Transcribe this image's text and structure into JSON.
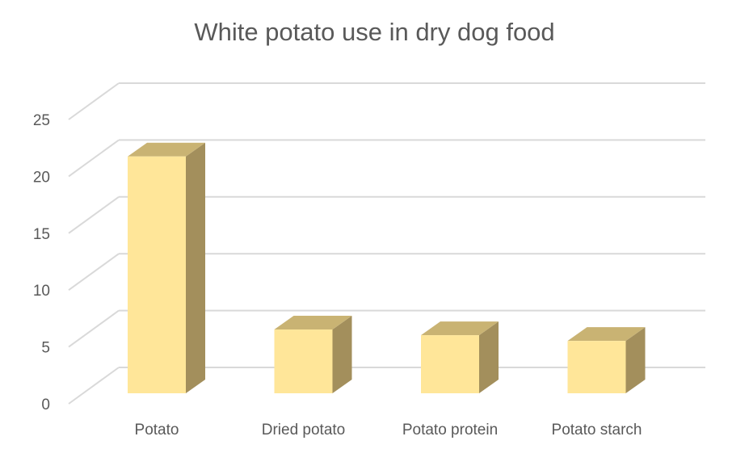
{
  "chart_data": {
    "type": "bar",
    "title": "White potato use in dry dog food",
    "categories": [
      "Potato",
      "Dried potato",
      "Potato protein",
      "Potato starch"
    ],
    "values": [
      20.8,
      5.6,
      5.1,
      4.6
    ],
    "ylim": [
      0,
      25
    ],
    "yticks": [
      0,
      5,
      10,
      15,
      20,
      25
    ],
    "ytick_labels": [
      "0",
      "5",
      "10",
      "15",
      "20",
      "25"
    ],
    "xlabel": "",
    "ylabel": "",
    "grid": true,
    "legend": "none",
    "three_d": true,
    "colors": {
      "bar_front": "#FFE699",
      "bar_top": "#C9B373",
      "bar_side": "#A38F5C",
      "grid": "#D9D9D9",
      "text": "#595959",
      "title": "#595959"
    }
  }
}
